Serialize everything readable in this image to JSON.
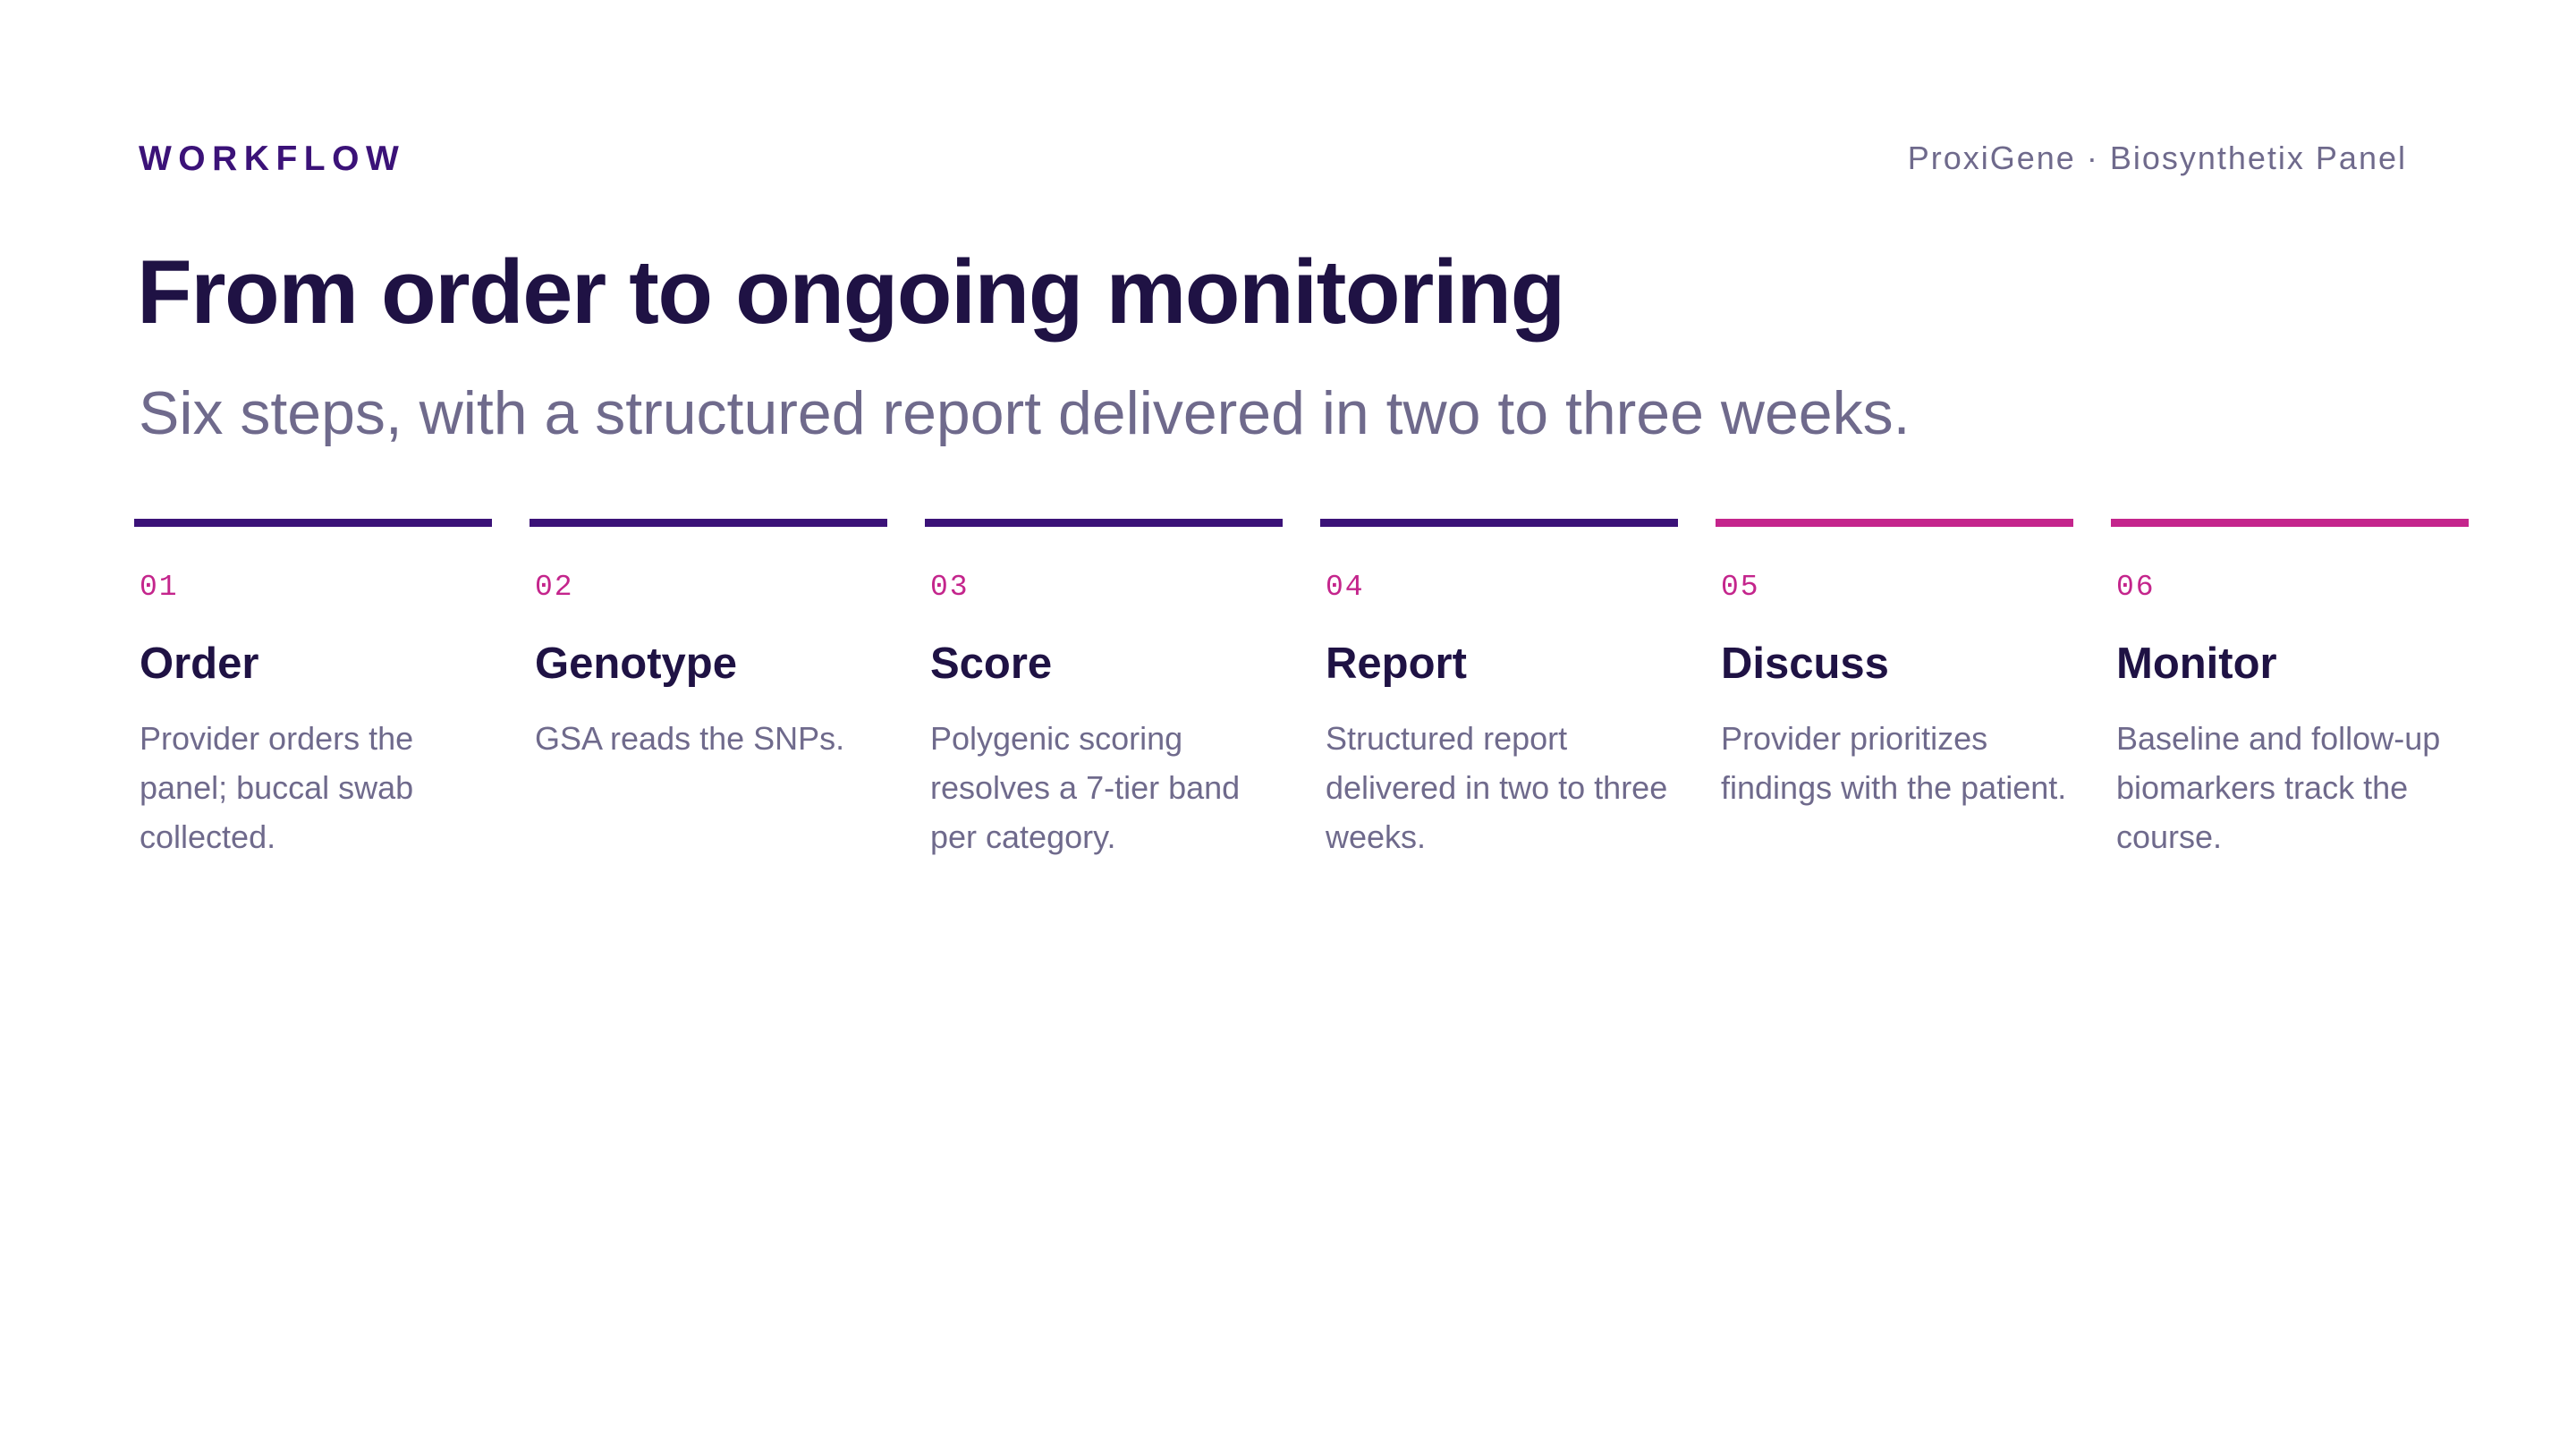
{
  "header": {
    "eyebrow": "WORKFLOW",
    "brand": "ProxiGene · Biosynthetix Panel"
  },
  "main": {
    "title": "From order to ongoing monitoring",
    "subtitle": "Six steps, with a structured report delivered in two to three weeks."
  },
  "colors": {
    "primary": "#3b1278",
    "accent": "#c4258c",
    "heading": "#1f1244",
    "muted": "#6f6a8c"
  },
  "steps": [
    {
      "number": "01",
      "title": "Order",
      "description": "Provider orders the panel; buccal swab collected.",
      "bar_color": "primary"
    },
    {
      "number": "02",
      "title": "Genotype",
      "description": "GSA reads the SNPs.",
      "bar_color": "primary"
    },
    {
      "number": "03",
      "title": "Score",
      "description": "Polygenic scoring resolves a 7-tier band per category.",
      "bar_color": "primary"
    },
    {
      "number": "04",
      "title": "Report",
      "description": "Structured report delivered in two to three weeks.",
      "bar_color": "primary"
    },
    {
      "number": "05",
      "title": "Discuss",
      "description": "Provider prioritizes findings with the patient.",
      "bar_color": "accent"
    },
    {
      "number": "06",
      "title": "Monitor",
      "description": "Baseline and follow-up biomarkers track the course.",
      "bar_color": "accent"
    }
  ]
}
